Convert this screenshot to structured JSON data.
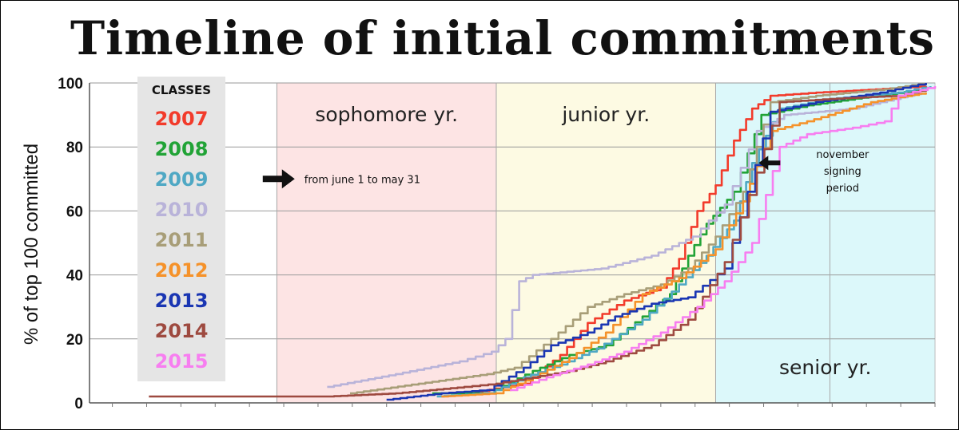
{
  "chart_data": {
    "type": "line",
    "title": "Timeline of initial commitments",
    "ylabel": "% of top 100 committed",
    "xlabel": "",
    "ylim": [
      0,
      100
    ],
    "yticks": [
      "0",
      "20",
      "40",
      "60",
      "80",
      "100"
    ],
    "grid": true,
    "legend": {
      "title": "CLASSES",
      "position": "top-left"
    },
    "periods": [
      {
        "label": "sophomore yr.",
        "start": 0.14,
        "end": 0.62,
        "color": "#fde4e4"
      },
      {
        "label": "junior yr.",
        "start": 0.62,
        "end": 1.1,
        "color": "#fdfae3"
      },
      {
        "label": "senior yr.",
        "start": 1.1,
        "end": 1.58,
        "color": "#dcf8fa"
      }
    ],
    "annotations": [
      {
        "text": "from june 1 to may 31",
        "x": 0.2,
        "y": 70
      },
      {
        "text": [
          "november",
          "signing",
          "period"
        ],
        "x": 1.32,
        "y": 75
      }
    ],
    "x_range": [
      -0.27,
      1.58
    ],
    "x_note": "years relative to the start of sophomore year (June 1); axis is unlabeled",
    "series": [
      {
        "name": "2007",
        "color": "#f23b2b",
        "points": [
          [
            0.56,
            3
          ],
          [
            0.68,
            6
          ],
          [
            0.76,
            15
          ],
          [
            0.82,
            25
          ],
          [
            0.9,
            32
          ],
          [
            0.98,
            36
          ],
          [
            1.02,
            45
          ],
          [
            1.06,
            60
          ],
          [
            1.1,
            68
          ],
          [
            1.14,
            82
          ],
          [
            1.18,
            92
          ],
          [
            1.22,
            96
          ],
          [
            1.32,
            97
          ],
          [
            1.45,
            98
          ],
          [
            1.56,
            99
          ]
        ]
      },
      {
        "name": "2008",
        "color": "#21a336",
        "points": [
          [
            0.48,
            3
          ],
          [
            0.6,
            3
          ],
          [
            0.7,
            10
          ],
          [
            0.78,
            15
          ],
          [
            0.86,
            18
          ],
          [
            0.94,
            27
          ],
          [
            1.0,
            34
          ],
          [
            1.04,
            46
          ],
          [
            1.08,
            56
          ],
          [
            1.14,
            66
          ],
          [
            1.2,
            90
          ],
          [
            1.3,
            93
          ],
          [
            1.45,
            96
          ],
          [
            1.56,
            98
          ]
        ]
      },
      {
        "name": "2009",
        "color": "#4fa8c4",
        "points": [
          [
            0.49,
            2
          ],
          [
            0.6,
            3
          ],
          [
            0.68,
            8
          ],
          [
            0.76,
            12
          ],
          [
            0.84,
            17
          ],
          [
            0.94,
            26
          ],
          [
            1.02,
            37
          ],
          [
            1.08,
            46
          ],
          [
            1.14,
            57
          ],
          [
            1.18,
            75
          ],
          [
            1.24,
            92
          ],
          [
            1.35,
            95
          ],
          [
            1.5,
            97
          ],
          [
            1.57,
            99
          ]
        ]
      },
      {
        "name": "2010",
        "color": "#b9b3d9",
        "points": [
          [
            0.25,
            5
          ],
          [
            0.4,
            9
          ],
          [
            0.54,
            13
          ],
          [
            0.61,
            16
          ],
          [
            0.64,
            20
          ],
          [
            0.67,
            38
          ],
          [
            0.7,
            40
          ],
          [
            0.85,
            42
          ],
          [
            0.96,
            46
          ],
          [
            1.05,
            52
          ],
          [
            1.12,
            62
          ],
          [
            1.19,
            85
          ],
          [
            1.25,
            90
          ],
          [
            1.4,
            92
          ],
          [
            1.55,
            97
          ]
        ]
      },
      {
        "name": "2011",
        "color": "#a89e78",
        "points": [
          [
            0.3,
            3
          ],
          [
            0.45,
            6
          ],
          [
            0.6,
            9
          ],
          [
            0.66,
            11
          ],
          [
            0.74,
            20
          ],
          [
            0.82,
            30
          ],
          [
            0.9,
            34
          ],
          [
            0.98,
            37
          ],
          [
            1.04,
            42
          ],
          [
            1.1,
            52
          ],
          [
            1.16,
            66
          ],
          [
            1.22,
            94
          ],
          [
            1.32,
            96
          ],
          [
            1.47,
            98
          ],
          [
            1.56,
            100
          ]
        ]
      },
      {
        "name": "2012",
        "color": "#f5922a",
        "points": [
          [
            0.5,
            2
          ],
          [
            0.62,
            3
          ],
          [
            0.7,
            8
          ],
          [
            0.78,
            14
          ],
          [
            0.86,
            22
          ],
          [
            0.94,
            34
          ],
          [
            1.02,
            39
          ],
          [
            1.1,
            48
          ],
          [
            1.16,
            63
          ],
          [
            1.22,
            85
          ],
          [
            1.3,
            88
          ],
          [
            1.44,
            94
          ],
          [
            1.56,
            97
          ]
        ]
      },
      {
        "name": "2013",
        "color": "#1a36b3",
        "points": [
          [
            0.38,
            1
          ],
          [
            0.5,
            3
          ],
          [
            0.6,
            4
          ],
          [
            0.68,
            11
          ],
          [
            0.74,
            18
          ],
          [
            0.82,
            22
          ],
          [
            0.88,
            27
          ],
          [
            0.96,
            31
          ],
          [
            1.04,
            33
          ],
          [
            1.12,
            42
          ],
          [
            1.17,
            66
          ],
          [
            1.22,
            91
          ],
          [
            1.32,
            94
          ],
          [
            1.46,
            97
          ],
          [
            1.56,
            100
          ]
        ]
      },
      {
        "name": "2014",
        "color": "#9e4a40",
        "points": [
          [
            -0.14,
            2
          ],
          [
            0.1,
            2
          ],
          [
            0.25,
            2
          ],
          [
            0.4,
            3
          ],
          [
            0.55,
            5
          ],
          [
            0.62,
            6
          ],
          [
            0.7,
            8
          ],
          [
            0.78,
            10
          ],
          [
            0.86,
            13
          ],
          [
            0.96,
            18
          ],
          [
            1.04,
            26
          ],
          [
            1.12,
            44
          ],
          [
            1.19,
            72
          ],
          [
            1.24,
            94
          ],
          [
            1.35,
            95
          ],
          [
            1.5,
            96
          ],
          [
            1.56,
            98
          ]
        ]
      },
      {
        "name": "2015",
        "color": "#f77ef0",
        "points": [
          [
            0.65,
            4
          ],
          [
            0.73,
            8
          ],
          [
            0.82,
            12
          ],
          [
            0.9,
            16
          ],
          [
            0.98,
            22
          ],
          [
            1.06,
            30
          ],
          [
            1.12,
            38
          ],
          [
            1.18,
            50
          ],
          [
            1.24,
            80
          ],
          [
            1.3,
            84
          ],
          [
            1.4,
            86
          ],
          [
            1.47,
            88
          ],
          [
            1.5,
            96
          ],
          [
            1.58,
            99
          ]
        ]
      }
    ]
  }
}
